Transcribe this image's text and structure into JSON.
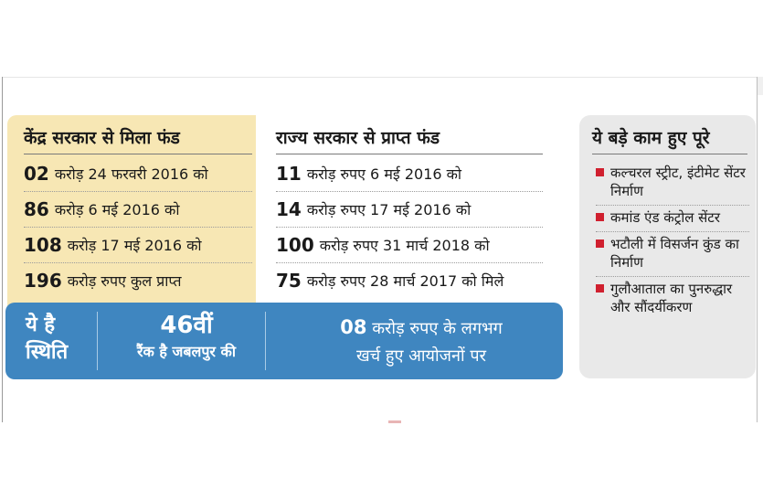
{
  "central": {
    "title": "केंद्र सरकार से मिला फंड",
    "rows": [
      {
        "amount": "02",
        "text": "करोड़ 24 फरवरी 2016 को"
      },
      {
        "amount": "86",
        "text": "करोड़ 6 मई 2016 को"
      },
      {
        "amount": "108",
        "text": "करोड़ 17 मई 2016 को"
      },
      {
        "amount": "196",
        "text": "करोड़ रुपए कुल प्राप्त"
      }
    ]
  },
  "state": {
    "title": "राज्य सरकार से प्राप्त फंड",
    "rows": [
      {
        "amount": "11",
        "text": "करोड़ रुपए 6 मई 2016 को"
      },
      {
        "amount": "14",
        "text": "करोड़ रुपए 17 मई 2016 को"
      },
      {
        "amount": "100",
        "text": "करोड़ रुपए 31 मार्च 2018 को"
      },
      {
        "amount": "75",
        "text": "करोड़ रुपए 28 मार्च 2017 को मिले"
      }
    ]
  },
  "status": {
    "label_line1": "ये है",
    "label_line2": "स्थिति",
    "rank_number": "46वीं",
    "rank_text": "रैंक है जबलपुर की",
    "spent_amount": "08",
    "spent_line1": "करोड़ रुपए के लगभग",
    "spent_line2": "खर्च हुए आयोजनों पर"
  },
  "works": {
    "title": "ये बड़े काम हुए पूरे",
    "items": [
      "कल्चरल स्ट्रीट, इंटीमेट सेंटर निर्माण",
      "कमांड एंड कंट्रोल सेंटर",
      "भटौली में विसर्जन कुंड का निर्माण",
      "गुलौआताल का पुनरुद्धार और सौंदर्यीकरण"
    ]
  },
  "colors": {
    "central_bg": "#f7e7b4",
    "status_bar": "#3f86c0",
    "works_bg": "#e9e9e9",
    "bullet": "#d0202f"
  }
}
